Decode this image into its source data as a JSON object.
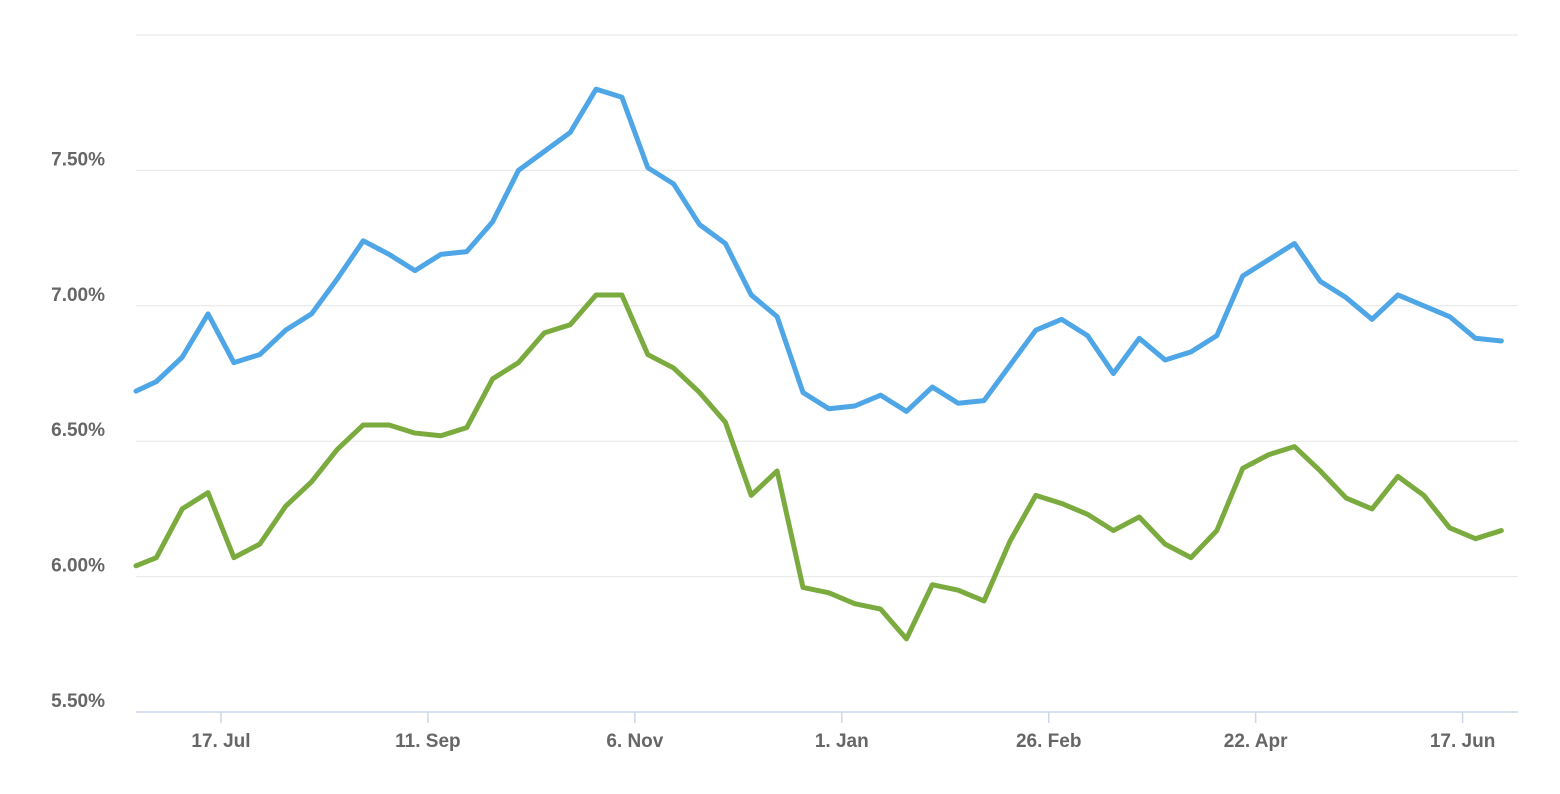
{
  "chart_data": {
    "type": "line",
    "x": [
      -23,
      -17.5,
      -10.5,
      -3.5,
      3.5,
      10.5,
      17.5,
      24.5,
      31.5,
      38.5,
      45.5,
      52.5,
      59.5,
      66.5,
      73.5,
      80.5,
      87.5,
      94.5,
      101.5,
      108.5,
      115.5,
      122.5,
      129.5,
      136.5,
      143.5,
      150.5,
      157.5,
      164.5,
      171.5,
      178.5,
      185.5,
      192.5,
      199.5,
      206.5,
      213.5,
      220.5,
      227.5,
      234.5,
      241.5,
      248.5,
      255.5,
      262.5,
      269.5,
      276.5,
      283.5,
      290.5,
      297.5,
      304.5,
      311.5,
      318.5,
      325.5,
      332.5,
      339.5,
      346.5
    ],
    "series": [
      {
        "color": "#4ea6e6",
        "values": [
          6.685,
          6.72,
          6.81,
          6.97,
          6.79,
          6.82,
          6.91,
          6.97,
          7.1,
          7.24,
          7.19,
          7.13,
          7.19,
          7.2,
          7.31,
          7.5,
          7.57,
          7.64,
          7.8,
          7.77,
          7.51,
          7.45,
          7.3,
          7.23,
          7.04,
          6.96,
          6.68,
          6.62,
          6.63,
          6.67,
          6.61,
          6.7,
          6.64,
          6.65,
          6.78,
          6.91,
          6.95,
          6.89,
          6.75,
          6.88,
          6.8,
          6.83,
          6.89,
          7.11,
          7.17,
          7.23,
          7.09,
          7.03,
          6.95,
          7.04,
          7.0,
          6.96,
          6.88,
          6.87
        ]
      },
      {
        "color": "#7bab3f",
        "values": [
          6.04,
          6.07,
          6.25,
          6.31,
          6.07,
          6.12,
          6.26,
          6.35,
          6.47,
          6.56,
          6.56,
          6.53,
          6.52,
          6.55,
          6.73,
          6.79,
          6.9,
          6.93,
          7.04,
          7.04,
          6.82,
          6.77,
          6.68,
          6.57,
          6.3,
          6.39,
          5.96,
          5.94,
          5.9,
          5.88,
          5.77,
          5.97,
          5.95,
          5.91,
          6.13,
          6.3,
          6.27,
          6.23,
          6.17,
          6.22,
          6.12,
          6.07,
          6.17,
          6.4,
          6.45,
          6.48,
          6.39,
          6.29,
          6.25,
          6.37,
          6.3,
          6.18,
          6.14,
          6.17
        ]
      }
    ],
    "xlim": [
      -23,
      351
    ],
    "xticks": [
      {
        "value": 0,
        "label": "17. Jul"
      },
      {
        "value": 56,
        "label": "11. Sep"
      },
      {
        "value": 112,
        "label": "6. Nov"
      },
      {
        "value": 168,
        "label": "1. Jan"
      },
      {
        "value": 224,
        "label": "26. Feb"
      },
      {
        "value": 280,
        "label": "22. Apr"
      },
      {
        "value": 336,
        "label": "17. Jun"
      }
    ],
    "ylim": [
      5.5,
      8.0
    ],
    "yticks": [
      {
        "value": 5.5,
        "label": "5.50%"
      },
      {
        "value": 6.0,
        "label": "6.00%"
      },
      {
        "value": 6.5,
        "label": "6.50%"
      },
      {
        "value": 7.0,
        "label": "7.00%"
      },
      {
        "value": 7.5,
        "label": "7.50%"
      }
    ],
    "grid": true
  }
}
